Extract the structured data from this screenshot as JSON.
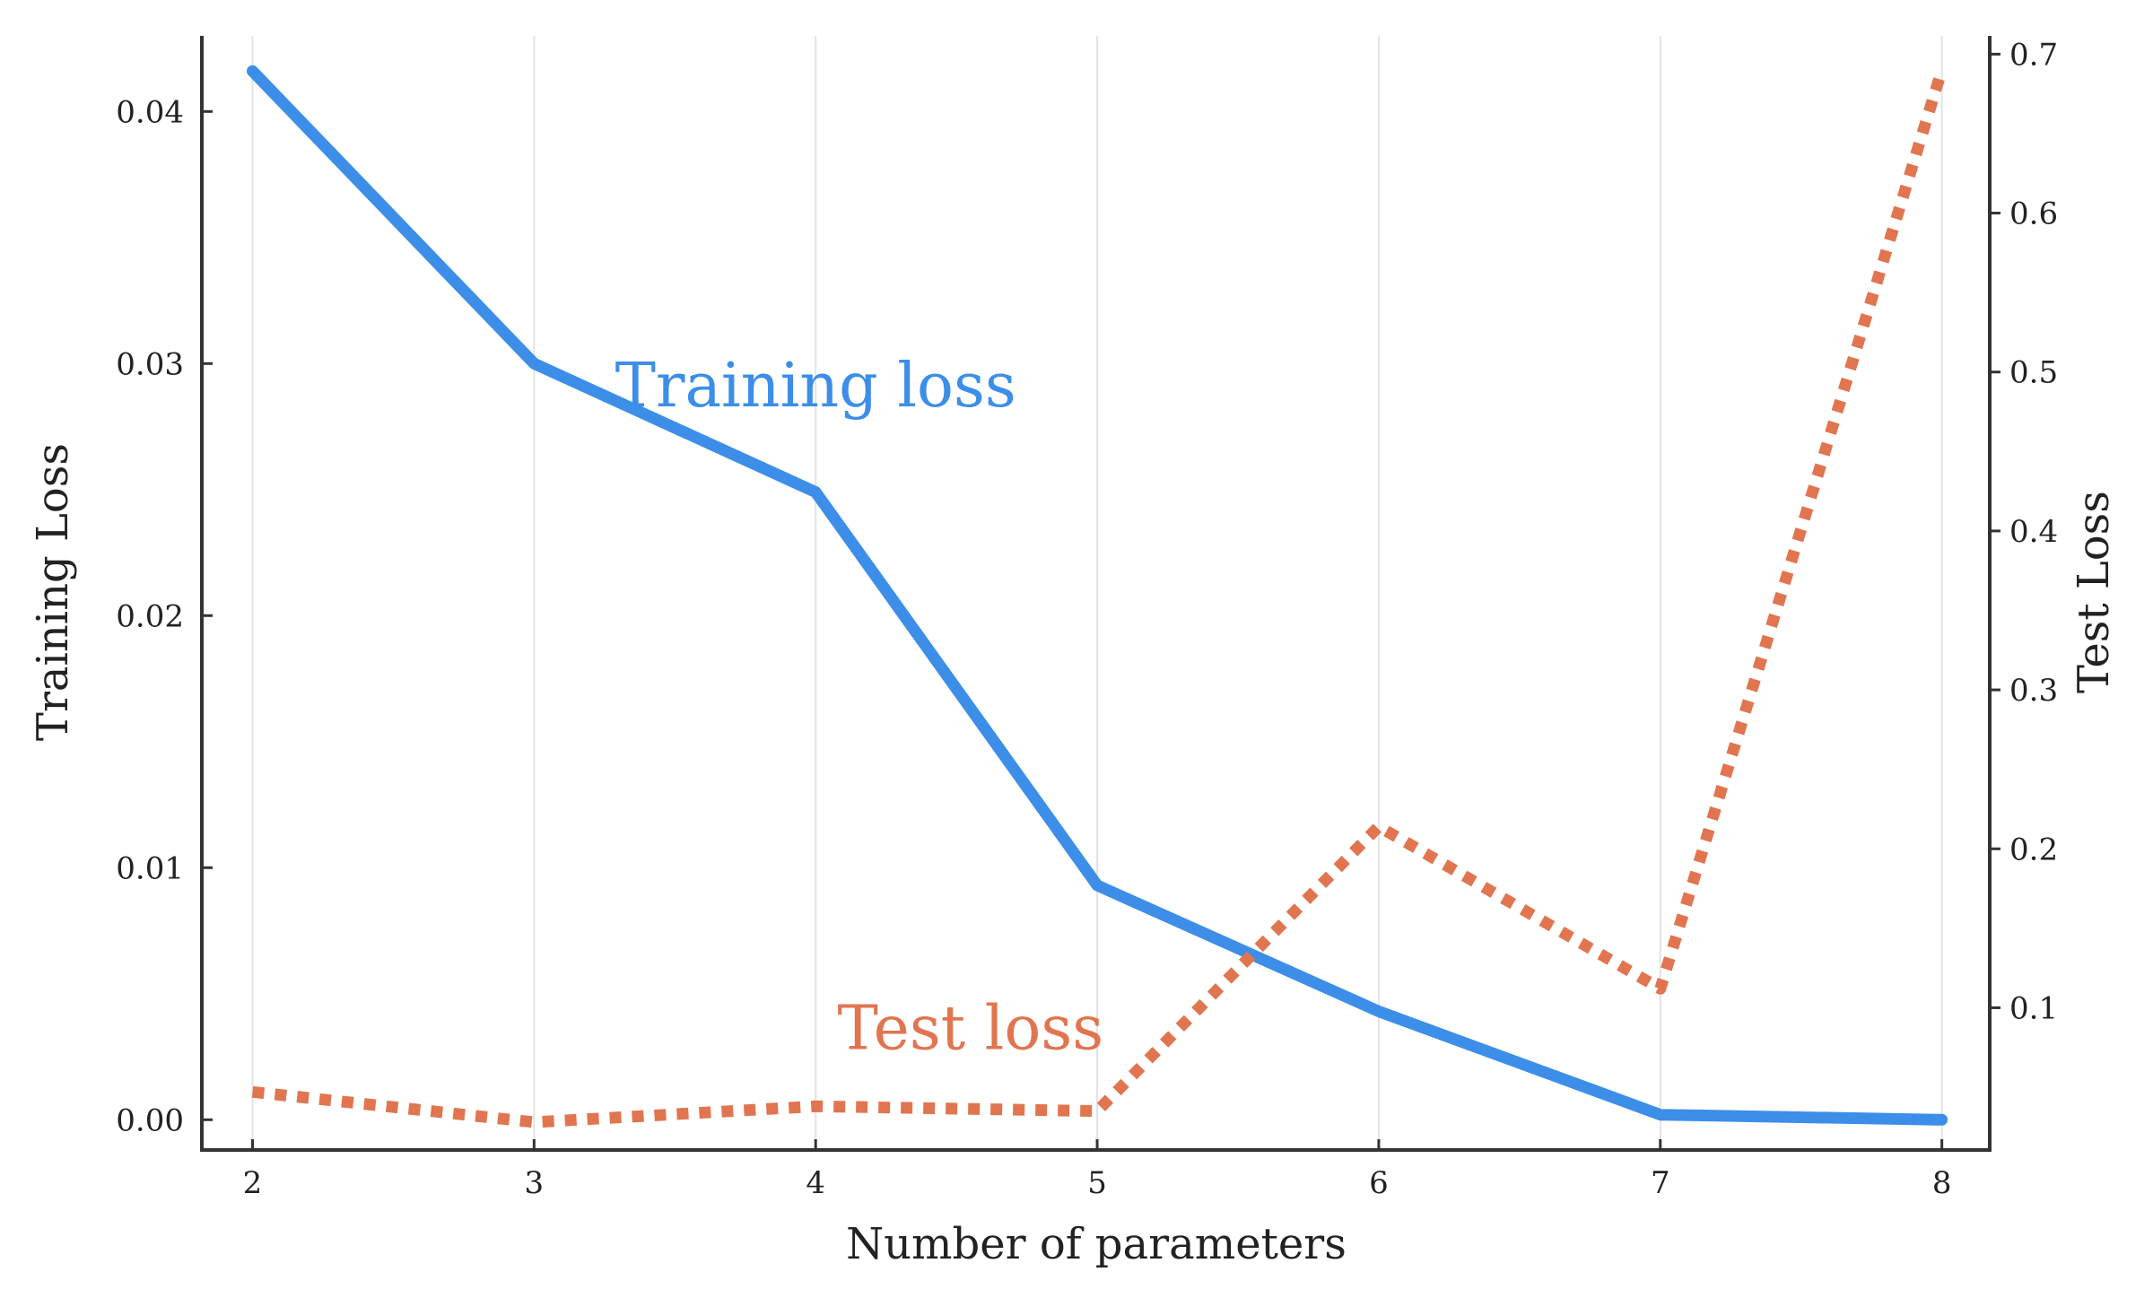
{
  "chart_data": {
    "type": "line",
    "x": [
      2,
      3,
      4,
      5,
      6,
      7,
      8
    ],
    "xlabel": "Number of parameters",
    "xticks": [
      "2",
      "3",
      "4",
      "5",
      "6",
      "7",
      "8"
    ],
    "xlim": [
      1.82,
      8.17
    ],
    "grid": "vertical only",
    "y_left": {
      "label": "Training Loss",
      "ylim": [
        -0.0012,
        0.043
      ],
      "ticks": [
        "0.00",
        "0.01",
        "0.02",
        "0.03",
        "0.04"
      ],
      "tick_values": [
        0.0,
        0.01,
        0.02,
        0.03,
        0.04
      ]
    },
    "y_right": {
      "label": "Test Loss",
      "ylim": [
        0.0105,
        0.7115
      ],
      "ticks": [
        "0.1",
        "0.2",
        "0.3",
        "0.4",
        "0.5",
        "0.6",
        "0.7"
      ],
      "tick_values": [
        0.1,
        0.2,
        0.3,
        0.4,
        0.5,
        0.6,
        0.7
      ]
    },
    "series": [
      {
        "axis": "left",
        "values": [
          0.0416,
          0.03,
          0.0249,
          0.0093,
          0.0043,
          0.0002,
          0.0
        ],
        "color": "#3c8ee8",
        "style": "solid"
      },
      {
        "axis": "right",
        "values": [
          0.047,
          0.028,
          0.038,
          0.035,
          0.214,
          0.112,
          0.69
        ],
        "color": "#e07550",
        "style": "dotted"
      }
    ],
    "annotations": [
      {
        "text": "Training loss",
        "color": "#3c8ee8",
        "x": 4.0,
        "axis": "left",
        "y": 0.0283
      },
      {
        "text": "Test loss",
        "color": "#e07550",
        "x": 4.55,
        "axis": "left",
        "y": 0.0028
      }
    ]
  }
}
